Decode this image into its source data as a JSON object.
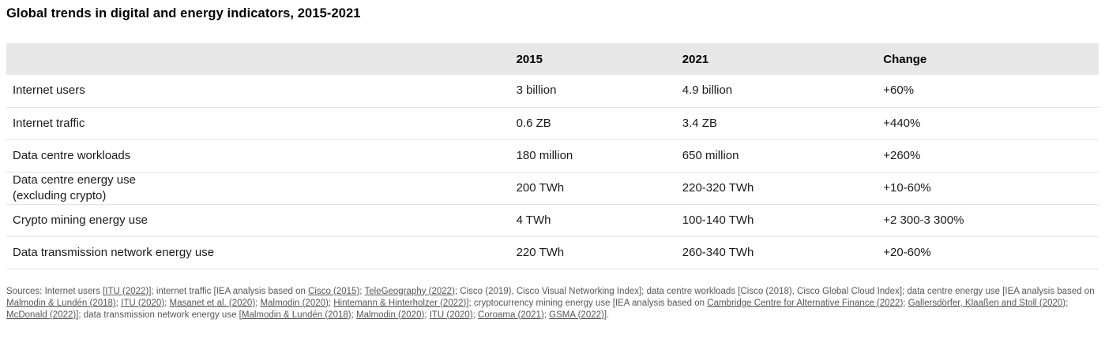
{
  "title": "Global trends in digital and energy indicators, 2015-2021",
  "table": {
    "columns": [
      "",
      "2015",
      "2021",
      "Change"
    ],
    "rows": [
      {
        "indicator": "Internet users",
        "v2015": "3 billion",
        "v2021": "4.9 billion",
        "change": "+60%"
      },
      {
        "indicator": "Internet traffic",
        "v2015": "0.6 ZB",
        "v2021": "3.4 ZB",
        "change": "+440%"
      },
      {
        "indicator": "Data centre workloads",
        "v2015": "180 million",
        "v2021": "650 million",
        "change": "+260%"
      },
      {
        "indicator": "Data centre energy use\n(excluding crypto)",
        "v2015": "200 TWh",
        "v2021": "220-320 TWh",
        "change": "+10-60%"
      },
      {
        "indicator": "Crypto mining energy use",
        "v2015": "4 TWh",
        "v2021": "100-140 TWh",
        "change": "+2 300-3 300%"
      },
      {
        "indicator": "Data transmission network energy use",
        "v2015": "220 TWh",
        "v2021": "260-340 TWh",
        "change": "+20-60%"
      }
    ]
  },
  "sources": {
    "segments": [
      {
        "link": false,
        "text": "Sources: Internet users ["
      },
      {
        "link": true,
        "text": "ITU (2022)]"
      },
      {
        "link": false,
        "text": "; internet traffic [IEA analysis based on "
      },
      {
        "link": true,
        "text": "Cisco (2015)"
      },
      {
        "link": false,
        "text": "; "
      },
      {
        "link": true,
        "text": "TeleGeography (2022)"
      },
      {
        "link": false,
        "text": "; Cisco (2019), Cisco Visual Networking Index]; data centre workloads [Cisco (2018), Cisco Global Cloud Index]; data centre energy use [IEA analysis based on "
      },
      {
        "link": true,
        "text": "Malmodin & Lundén (2018)"
      },
      {
        "link": false,
        "text": "; "
      },
      {
        "link": true,
        "text": "ITU (2020)"
      },
      {
        "link": false,
        "text": "; "
      },
      {
        "link": true,
        "text": "Masanet et al. (2020)"
      },
      {
        "link": false,
        "text": "; "
      },
      {
        "link": true,
        "text": "Malmodin (2020)"
      },
      {
        "link": false,
        "text": "; "
      },
      {
        "link": true,
        "text": "Hintemann & Hinterholzer (2022)]"
      },
      {
        "link": false,
        "text": "; cryptocurrency mining energy use [IEA analysis based on "
      },
      {
        "link": true,
        "text": "Cambridge Centre for Alternative Finance (2022)"
      },
      {
        "link": false,
        "text": "; "
      },
      {
        "link": true,
        "text": "Gallersdörfer, Klaaßen and Stoll (2020)"
      },
      {
        "link": false,
        "text": "; "
      },
      {
        "link": true,
        "text": "McDonald (2022)]"
      },
      {
        "link": false,
        "text": "; data transmission network energy use ["
      },
      {
        "link": true,
        "text": "Malmodin & Lundén (2018)"
      },
      {
        "link": false,
        "text": "; "
      },
      {
        "link": true,
        "text": "Malmodin (2020)"
      },
      {
        "link": false,
        "text": "; "
      },
      {
        "link": true,
        "text": "ITU (2020)"
      },
      {
        "link": false,
        "text": "; "
      },
      {
        "link": true,
        "text": "Coroama (2021)"
      },
      {
        "link": false,
        "text": "; "
      },
      {
        "link": true,
        "text": "GSMA (2022)]"
      },
      {
        "link": false,
        "text": "."
      }
    ]
  },
  "colors": {
    "header_band": "#e7e7e7",
    "row_border": "#e2e2e2",
    "body_text": "#1a1a1a",
    "sources_text": "#565656"
  }
}
